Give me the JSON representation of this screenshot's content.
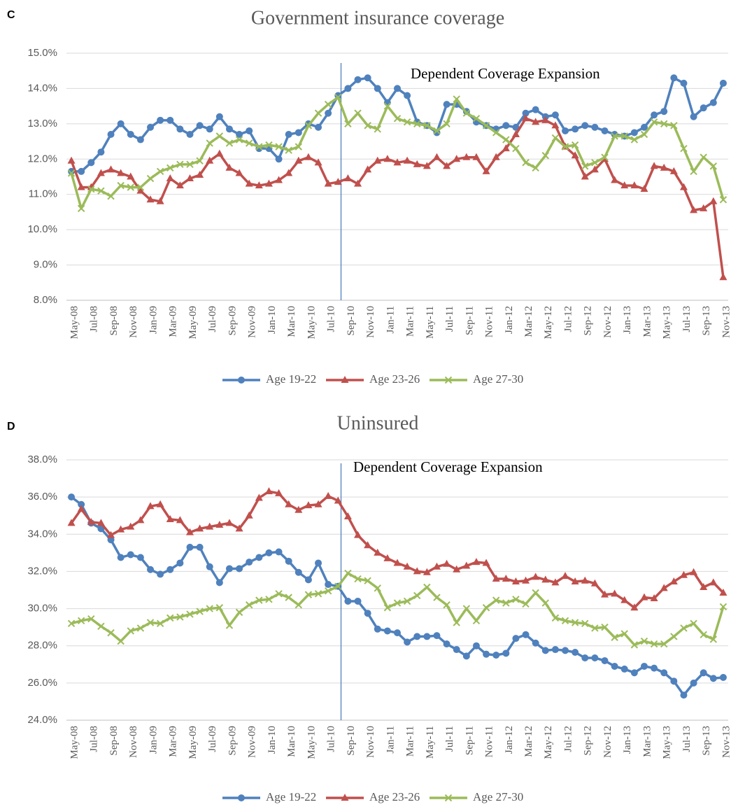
{
  "chart_data": [
    {
      "type": "line",
      "panel": "C",
      "title": "Government insurance coverage",
      "annotation": "Dependent Coverage Expansion",
      "categories": [
        "May-08",
        null,
        "Jul-08",
        null,
        "Sep-08",
        null,
        "Nov-08",
        null,
        "Jan-09",
        null,
        "Mar-09",
        null,
        "May-09",
        null,
        "Jul-09",
        null,
        "Sep-09",
        null,
        "Nov-09",
        null,
        "Jan-10",
        null,
        "Mar-10",
        null,
        "May-10",
        null,
        "Jul-10",
        null,
        "Sep-10",
        null,
        "Nov-10",
        null,
        "Jan-11",
        null,
        "Mar-11",
        null,
        "May-11",
        null,
        "Jul-11",
        null,
        "Sep-11",
        null,
        "Nov-11",
        null,
        "Jan-12",
        null,
        "Mar-12",
        null,
        "May-12",
        null,
        "Jul-12",
        null,
        "Sep-12",
        null,
        "Nov-12",
        null,
        "Jan-13",
        null,
        "Mar-13",
        null,
        "May-13",
        null,
        "Jul-13",
        null,
        "Sep-13",
        null,
        "Nov-13"
      ],
      "ylim": [
        8,
        15
      ],
      "yticks": [
        {
          "value": 8,
          "label": "8.0%"
        },
        {
          "value": 9,
          "label": "9.0%"
        },
        {
          "value": 10,
          "label": "10.0%"
        },
        {
          "value": 11,
          "label": "11.0%"
        },
        {
          "value": 12,
          "label": "12.0%"
        },
        {
          "value": 13,
          "label": "13.0%"
        },
        {
          "value": 14,
          "label": "14.0%"
        },
        {
          "value": 15,
          "label": "15.0%"
        }
      ],
      "grid": true,
      "legend": "bottom",
      "series": [
        {
          "name": "Age 19-22",
          "color": "#4f81bd",
          "marker": "circle",
          "values": [
            11.65,
            11.65,
            11.9,
            12.2,
            12.7,
            13.0,
            12.7,
            12.55,
            12.9,
            13.1,
            13.1,
            12.85,
            12.7,
            12.95,
            12.85,
            13.2,
            12.85,
            12.7,
            12.8,
            12.3,
            12.3,
            12.0,
            12.7,
            12.75,
            13.0,
            12.9,
            13.3,
            13.8,
            14.0,
            14.25,
            14.3,
            14.0,
            13.6,
            14.0,
            13.8,
            13.05,
            12.95,
            12.75,
            13.55,
            13.55,
            13.35,
            13.05,
            12.95,
            12.85,
            12.95,
            12.9,
            13.3,
            13.4,
            13.2,
            13.25,
            12.8,
            12.85,
            12.95,
            12.9,
            12.8,
            12.7,
            12.65,
            12.75,
            12.9,
            13.25,
            13.35,
            14.3,
            14.15,
            13.2,
            13.45,
            13.6,
            14.15
          ]
        },
        {
          "name": "Age 23-26",
          "color": "#c0504d",
          "marker": "triangle",
          "values": [
            11.95,
            11.2,
            11.2,
            11.6,
            11.7,
            11.6,
            11.5,
            11.1,
            10.85,
            10.8,
            11.45,
            11.25,
            11.45,
            11.55,
            11.95,
            12.15,
            11.75,
            11.6,
            11.3,
            11.25,
            11.3,
            11.4,
            11.6,
            11.95,
            12.05,
            11.9,
            11.3,
            11.35,
            11.45,
            11.3,
            11.7,
            11.95,
            12.0,
            11.9,
            11.95,
            11.85,
            11.8,
            12.05,
            11.8,
            12.0,
            12.05,
            12.05,
            11.65,
            12.05,
            12.3,
            12.7,
            13.15,
            13.05,
            13.1,
            12.95,
            12.35,
            12.1,
            11.5,
            11.7,
            12.0,
            11.4,
            11.25,
            11.25,
            11.15,
            11.8,
            11.75,
            11.65,
            11.2,
            10.55,
            10.6,
            10.8,
            8.65
          ]
        },
        {
          "name": "Age 27-30",
          "color": "#9bbb59",
          "marker": "x",
          "values": [
            11.6,
            10.6,
            11.15,
            11.1,
            10.95,
            11.25,
            11.2,
            11.2,
            11.45,
            11.65,
            11.75,
            11.85,
            11.85,
            11.95,
            12.45,
            12.65,
            12.45,
            12.55,
            12.45,
            12.35,
            12.4,
            12.35,
            12.25,
            12.35,
            12.95,
            13.3,
            13.55,
            13.75,
            13.0,
            13.3,
            12.95,
            12.85,
            13.5,
            13.15,
            13.05,
            13.0,
            12.95,
            12.8,
            13.0,
            13.7,
            13.3,
            13.15,
            12.95,
            12.75,
            12.55,
            12.3,
            11.9,
            11.75,
            12.1,
            12.6,
            12.35,
            12.4,
            11.8,
            11.9,
            12.05,
            12.65,
            12.65,
            12.55,
            12.7,
            13.05,
            13.0,
            12.95,
            12.3,
            11.65,
            12.05,
            11.8,
            10.85
          ]
        }
      ]
    },
    {
      "type": "line",
      "panel": "D",
      "title": "Uninsured",
      "annotation": "Dependent Coverage Expansion",
      "categories": [
        "May-08",
        null,
        "Jul-08",
        null,
        "Sep-08",
        null,
        "Nov-08",
        null,
        "Jan-09",
        null,
        "Mar-09",
        null,
        "May-09",
        null,
        "Jul-09",
        null,
        "Sep-09",
        null,
        "Nov-09",
        null,
        "Jan-10",
        null,
        "Mar-10",
        null,
        "May-10",
        null,
        "Jul-10",
        null,
        "Sep-10",
        null,
        "Nov-10",
        null,
        "Jan-11",
        null,
        "Mar-11",
        null,
        "May-11",
        null,
        "Jul-11",
        null,
        "Sep-11",
        null,
        "Nov-11",
        null,
        "Jan-12",
        null,
        "Mar-12",
        null,
        "May-12",
        null,
        "Jul-12",
        null,
        "Sep-12",
        null,
        "Nov-12",
        null,
        "Jan-13",
        null,
        "Mar-13",
        null,
        "May-13",
        null,
        "Jul-13",
        null,
        "Sep-13",
        null,
        "Nov-13"
      ],
      "ylim": [
        24,
        38
      ],
      "yticks": [
        {
          "value": 24,
          "label": "24.0%"
        },
        {
          "value": 26,
          "label": "26.0%"
        },
        {
          "value": 28,
          "label": "28.0%"
        },
        {
          "value": 30,
          "label": "30.0%"
        },
        {
          "value": 32,
          "label": "32.0%"
        },
        {
          "value": 34,
          "label": "34.0%"
        },
        {
          "value": 36,
          "label": "36.0%"
        },
        {
          "value": 38,
          "label": "38.0%"
        }
      ],
      "grid": true,
      "legend": "bottom",
      "series": [
        {
          "name": "Age 19-22",
          "color": "#4f81bd",
          "marker": "circle",
          "values": [
            36.0,
            35.6,
            34.6,
            34.3,
            33.7,
            32.75,
            32.9,
            32.75,
            32.1,
            31.85,
            32.1,
            32.45,
            33.3,
            33.3,
            32.25,
            31.4,
            32.15,
            32.15,
            32.5,
            32.75,
            33.0,
            33.05,
            32.55,
            31.95,
            31.55,
            32.45,
            31.3,
            31.2,
            30.4,
            30.4,
            29.75,
            28.9,
            28.8,
            28.7,
            28.2,
            28.5,
            28.5,
            28.55,
            28.1,
            27.8,
            27.45,
            28.0,
            27.55,
            27.5,
            27.6,
            28.4,
            28.6,
            28.15,
            27.75,
            27.8,
            27.75,
            27.65,
            27.35,
            27.35,
            27.2,
            26.9,
            26.75,
            26.55,
            26.9,
            26.8,
            26.55,
            26.1,
            25.35,
            26.0,
            26.55,
            26.25,
            26.3
          ]
        },
        {
          "name": "Age 23-26",
          "color": "#c0504d",
          "marker": "triangle",
          "values": [
            34.6,
            35.35,
            34.65,
            34.6,
            33.95,
            34.25,
            34.4,
            34.75,
            35.5,
            35.6,
            34.8,
            34.75,
            34.1,
            34.3,
            34.4,
            34.5,
            34.6,
            34.3,
            35.0,
            35.95,
            36.3,
            36.2,
            35.6,
            35.3,
            35.55,
            35.6,
            36.05,
            35.8,
            34.95,
            33.95,
            33.4,
            33.0,
            32.7,
            32.45,
            32.25,
            32.0,
            31.95,
            32.25,
            32.4,
            32.1,
            32.3,
            32.5,
            32.45,
            31.6,
            31.6,
            31.45,
            31.5,
            31.7,
            31.55,
            31.4,
            31.75,
            31.45,
            31.5,
            31.35,
            30.75,
            30.8,
            30.45,
            30.05,
            30.6,
            30.55,
            31.1,
            31.45,
            31.8,
            31.95,
            31.15,
            31.4,
            30.85
          ]
        },
        {
          "name": "Age 27-30",
          "color": "#9bbb59",
          "marker": "x",
          "values": [
            29.2,
            29.35,
            29.45,
            29.05,
            28.7,
            28.25,
            28.8,
            28.95,
            29.25,
            29.2,
            29.5,
            29.55,
            29.7,
            29.85,
            30.0,
            30.05,
            29.1,
            29.8,
            30.2,
            30.45,
            30.5,
            30.8,
            30.6,
            30.2,
            30.75,
            30.8,
            30.95,
            31.2,
            31.9,
            31.6,
            31.5,
            31.1,
            30.05,
            30.3,
            30.4,
            30.7,
            31.15,
            30.6,
            30.2,
            29.25,
            30.0,
            29.35,
            30.05,
            30.45,
            30.3,
            30.5,
            30.25,
            30.85,
            30.3,
            29.5,
            29.35,
            29.25,
            29.2,
            28.95,
            29.0,
            28.45,
            28.65,
            28.05,
            28.25,
            28.1,
            28.1,
            28.5,
            28.95,
            29.2,
            28.6,
            28.35,
            30.1
          ]
        }
      ]
    }
  ]
}
